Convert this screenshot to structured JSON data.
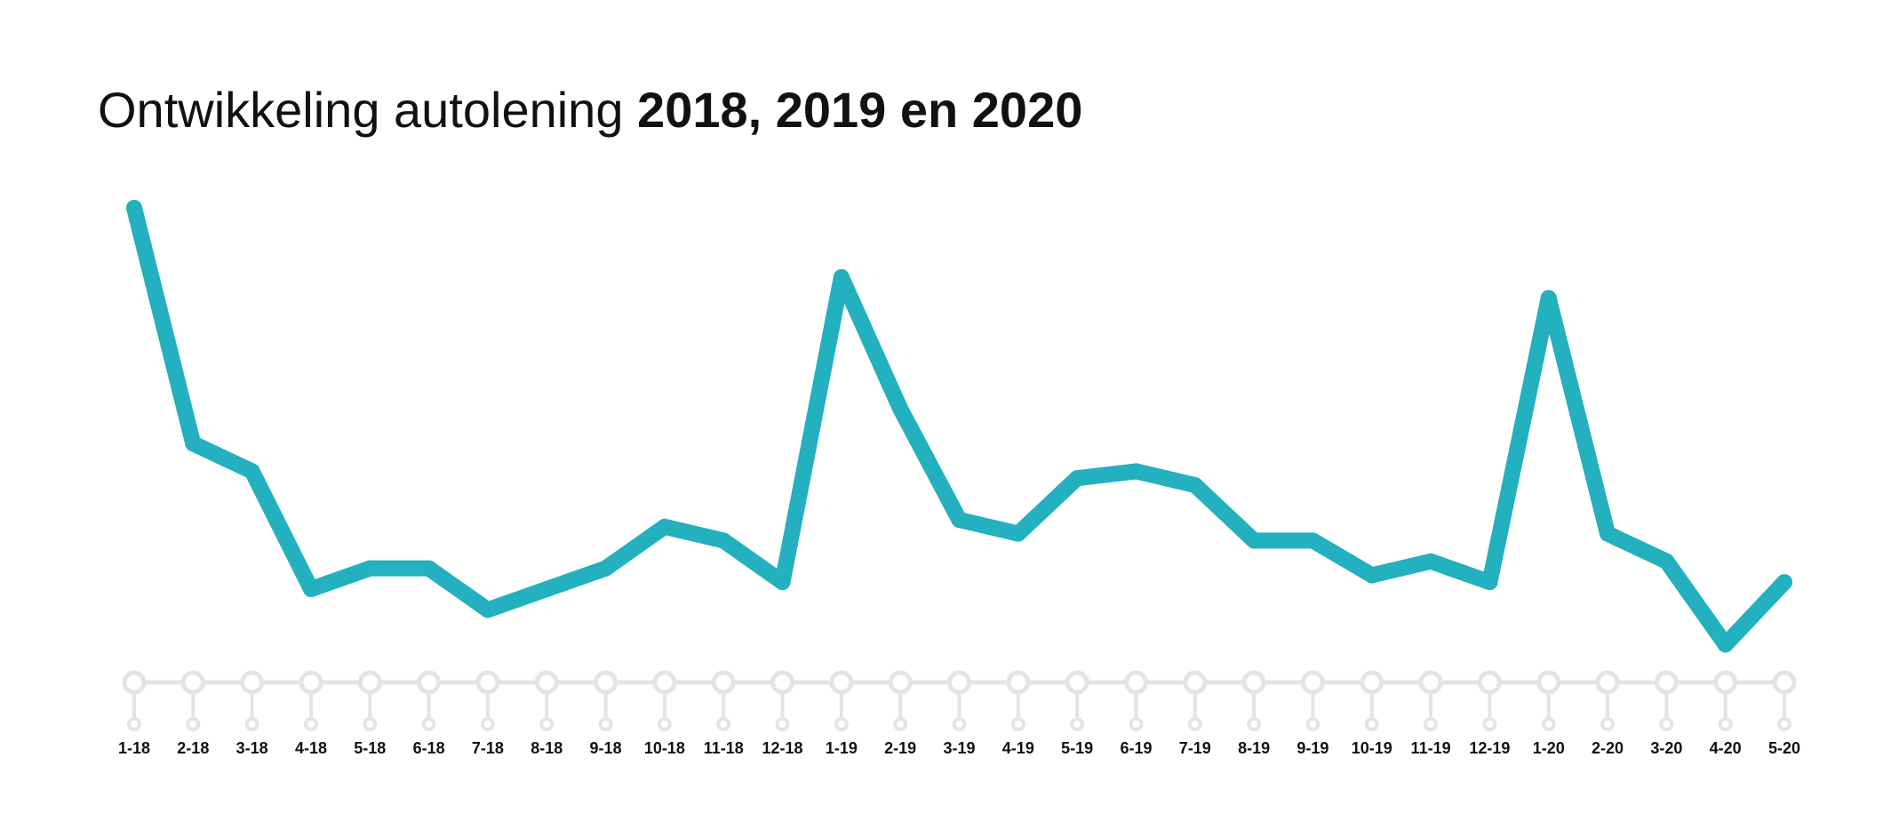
{
  "title": {
    "light": "Ontwikkeling autolening",
    "bold": "2018, 2019 en 2020"
  },
  "colors": {
    "line": "#23b0bf",
    "axis": "#e4e4e4",
    "text": "#111111"
  },
  "chart_data": {
    "type": "line",
    "title": "Ontwikkeling autolening 2018, 2019 en 2020",
    "xlabel": "",
    "ylabel": "",
    "y_axis_visible": false,
    "grid": false,
    "categories": [
      "1-18",
      "2-18",
      "3-18",
      "4-18",
      "5-18",
      "6-18",
      "7-18",
      "8-18",
      "9-18",
      "10-18",
      "11-18",
      "12-18",
      "1-19",
      "2-19",
      "3-19",
      "4-19",
      "5-19",
      "6-19",
      "7-19",
      "8-19",
      "9-19",
      "10-19",
      "11-19",
      "12-19",
      "1-20",
      "2-20",
      "3-20",
      "4-20",
      "5-20"
    ],
    "series": [
      {
        "values": [
          100,
          66,
          62,
          45,
          48,
          48,
          42,
          45,
          48,
          54,
          52,
          46,
          90,
          71,
          55,
          53,
          61,
          62,
          60,
          52,
          52,
          47,
          49,
          46,
          87,
          53,
          49,
          37,
          46
        ]
      }
    ],
    "ylim": [
      30,
      105
    ]
  }
}
